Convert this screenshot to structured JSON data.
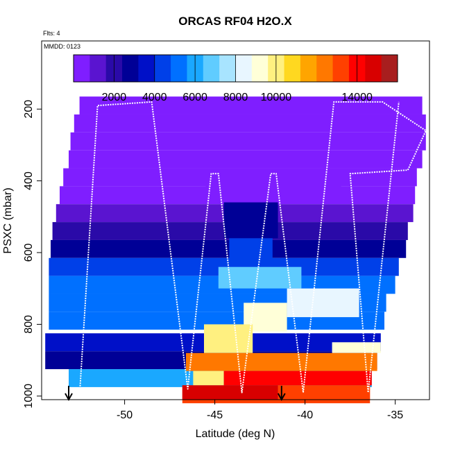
{
  "chart_data": {
    "type": "heatmap",
    "title": "ORCAS RF04 H2O.X",
    "annotation_flights": "Flts: 4",
    "annotation_date": "MMDD: 0123",
    "xlabel": "Latitude (deg N)",
    "ylabel": "PSXC (mbar)",
    "xlim": [
      -54.6,
      -33.1
    ],
    "ylim": [
      1010,
      10
    ],
    "y_reversed": true,
    "grid": false,
    "x_ticks": [
      -50,
      -45,
      -40,
      -35
    ],
    "x_tick_labels": [
      "-50",
      "-45",
      "-40",
      "-35"
    ],
    "y_ticks": [
      200,
      400,
      600,
      800,
      1000
    ],
    "y_tick_labels": [
      "200",
      "400",
      "600",
      "800",
      "1000"
    ],
    "colorbar": {
      "placement": "top-inside",
      "range": [
        0,
        16000
      ],
      "colors": [
        "#7f1eff",
        "#5a14d0",
        "#2a0aa8",
        "#000096",
        "#0010c8",
        "#0040e8",
        "#0070ff",
        "#1aa8ff",
        "#60ccff",
        "#a8e4ff",
        "#e8f6ff",
        "#ffffd8",
        "#fff080",
        "#ffd820",
        "#ffa500",
        "#ff7800",
        "#ff4000",
        "#ff0000",
        "#d80000",
        "#a81e1e"
      ],
      "ticks": [
        2000,
        4000,
        6000,
        8000,
        10000,
        14000
      ],
      "tick_labels": [
        "2000",
        "4000",
        "6000",
        "8000",
        "10000",
        "14000"
      ]
    },
    "rows": [
      {
        "p": 190,
        "x0": -52.5,
        "x1": -33.5,
        "v": 100
      },
      {
        "p": 240,
        "x0": -52.8,
        "x1": -33.3,
        "v": 150
      },
      {
        "p": 290,
        "x0": -53.0,
        "x1": -33.3,
        "v": 200
      },
      {
        "p": 340,
        "x0": -53.1,
        "x1": -33.5,
        "v": 300
      },
      {
        "p": 390,
        "x0": -53.4,
        "x1": -33.8,
        "v": 400
      },
      {
        "p": 440,
        "x0": -53.6,
        "x1": -33.9,
        "v": 700
      },
      {
        "p": 490,
        "x0": -53.8,
        "x1": -34.0,
        "v": 1000
      },
      {
        "p": 540,
        "x0": -54.0,
        "x1": -34.3,
        "v": 1800
      },
      {
        "p": 590,
        "x0": -54.1,
        "x1": -34.4,
        "v": 2500
      },
      {
        "p": 640,
        "x0": -54.2,
        "x1": -34.8,
        "v": 4500
      },
      {
        "p": 690,
        "x0": -54.2,
        "x1": -35.0,
        "v": 5200
      },
      {
        "p": 740,
        "x0": -54.2,
        "x1": -35.5,
        "v": 5500
      },
      {
        "p": 790,
        "x0": -54.2,
        "x1": -35.6,
        "v": 5000
      },
      {
        "p": 850,
        "x0": -54.4,
        "x1": -35.8,
        "v": 3500
      },
      {
        "p": 900,
        "x0": -54.4,
        "x1": -36.0,
        "v": 2500
      },
      {
        "p": 950,
        "x0": -53.1,
        "x1": -36.3,
        "v": 6000
      },
      {
        "p": 995,
        "x0": -46.8,
        "x1": -36.4,
        "v": 13000
      }
    ],
    "patches": [
      {
        "p0": 380,
        "p1": 440,
        "x0": -45.5,
        "x1": -38.0,
        "v": 600
      },
      {
        "p0": 460,
        "p1": 560,
        "x0": -44.5,
        "x1": -41.5,
        "v": 2600
      },
      {
        "p0": 560,
        "p1": 660,
        "x0": -44.2,
        "x1": -41.8,
        "v": 4500
      },
      {
        "p0": 640,
        "p1": 700,
        "x0": -44.8,
        "x1": -40.2,
        "v": 6800
      },
      {
        "p0": 700,
        "p1": 780,
        "x0": -41.0,
        "x1": -37.0,
        "v": 8300
      },
      {
        "p0": 740,
        "p1": 820,
        "x0": -43.4,
        "x1": -41.0,
        "v": 9500
      },
      {
        "p0": 800,
        "p1": 880,
        "x0": -45.6,
        "x1": -42.9,
        "v": 10200
      },
      {
        "p0": 850,
        "p1": 880,
        "x0": -38.5,
        "x1": -35.8,
        "v": 9400
      },
      {
        "p0": 880,
        "p1": 930,
        "x0": -46.6,
        "x1": -36.0,
        "v": 12500
      },
      {
        "p0": 930,
        "p1": 970,
        "x0": -46.2,
        "x1": -44.5,
        "v": 9800
      },
      {
        "p0": 930,
        "p1": 970,
        "x0": -44.5,
        "x1": -36.3,
        "v": 14200
      },
      {
        "p0": 970,
        "p1": 1010,
        "x0": -46.8,
        "x1": -41.5,
        "v": 15000
      },
      {
        "p0": 970,
        "p1": 1010,
        "x0": -41.5,
        "x1": -36.4,
        "v": 12800
      }
    ],
    "flight_track": [
      [
        -52.5,
        1000
      ],
      [
        -51.5,
        190
      ],
      [
        -48.5,
        180
      ],
      [
        -46.5,
        980
      ],
      [
        -45.2,
        380
      ],
      [
        -44.8,
        380
      ],
      [
        -43.5,
        990
      ],
      [
        -41.9,
        380
      ],
      [
        -41.6,
        380
      ],
      [
        -40.1,
        990
      ],
      [
        -38.4,
        180
      ],
      [
        -35.7,
        180
      ],
      [
        -33.3,
        260
      ],
      [
        -34.3,
        370
      ],
      [
        -37.5,
        380
      ],
      [
        -36.5,
        990
      ],
      [
        -34.8,
        180
      ]
    ],
    "markers": [
      {
        "x": -53.1,
        "label": "↓"
      },
      {
        "x": -41.3,
        "label": "↓"
      }
    ]
  }
}
